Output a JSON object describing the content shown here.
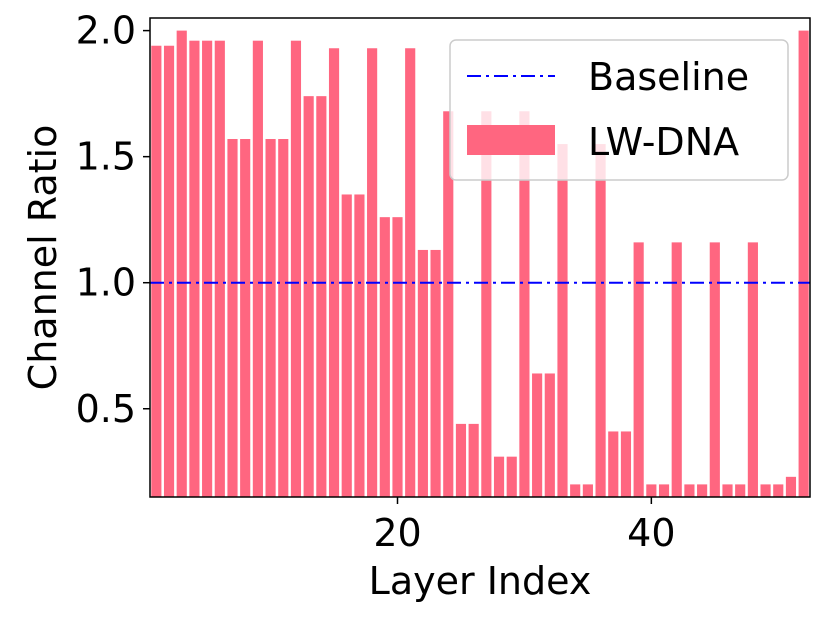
{
  "chart_data": {
    "type": "bar",
    "xlabel": "Layer Index",
    "ylabel": "Channel Ratio",
    "xlim": [
      0.5,
      52.5
    ],
    "ylim": [
      0.15,
      2.05
    ],
    "yticks": [
      "0.5",
      "1.0",
      "1.5",
      "2.0"
    ],
    "ytick_values": [
      0.5,
      1.0,
      1.5,
      2.0
    ],
    "xticks": [
      "20",
      "40"
    ],
    "xtick_values": [
      20,
      40
    ],
    "legend_position": "top-right",
    "series": [
      {
        "name": "Baseline",
        "kind": "line",
        "style": "dash-dot",
        "color": "#0000ff",
        "value": 1.0
      },
      {
        "name": "LW-DNA",
        "kind": "bar",
        "color": "#ff6680",
        "x": [
          1,
          2,
          3,
          4,
          5,
          6,
          7,
          8,
          9,
          10,
          11,
          12,
          13,
          14,
          15,
          16,
          17,
          18,
          19,
          20,
          21,
          22,
          23,
          24,
          25,
          26,
          27,
          28,
          29,
          30,
          31,
          32,
          33,
          34,
          35,
          36,
          37,
          38,
          39,
          40,
          41,
          42,
          43,
          44,
          45,
          46,
          47,
          48,
          49,
          50,
          51,
          52
        ],
        "values": [
          1.94,
          1.94,
          2.0,
          1.96,
          1.96,
          1.96,
          1.57,
          1.57,
          1.96,
          1.57,
          1.57,
          1.96,
          1.74,
          1.74,
          1.93,
          1.35,
          1.35,
          1.93,
          1.26,
          1.26,
          1.93,
          1.13,
          1.13,
          1.68,
          0.44,
          0.44,
          1.68,
          0.31,
          0.31,
          1.68,
          0.64,
          0.64,
          1.55,
          0.2,
          0.2,
          1.55,
          0.41,
          0.41,
          1.16,
          0.2,
          0.2,
          1.16,
          0.2,
          0.2,
          1.16,
          0.2,
          0.2,
          1.16,
          0.2,
          0.2,
          0.23,
          2.0
        ]
      }
    ]
  }
}
